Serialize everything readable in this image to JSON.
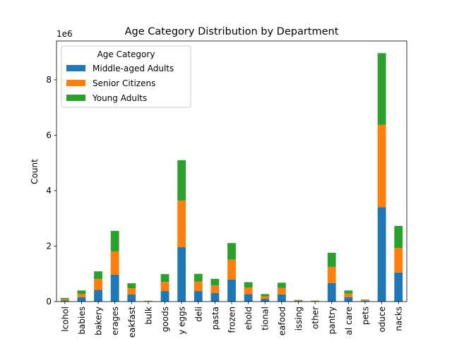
{
  "chart_data": {
    "type": "bar",
    "stacked": true,
    "title": "Age Category Distribution by Department",
    "xlabel": "",
    "ylabel": "Count",
    "offset_text": "1e6",
    "ylim": [
      0,
      9400000
    ],
    "yticks": [
      0,
      2,
      4,
      6,
      8
    ],
    "ytick_scale": 1000000,
    "grid": false,
    "legend": {
      "title": "Age Category",
      "placement": "top-left"
    },
    "categories": [
      "alcohol",
      "babies",
      "bakery",
      "beverages",
      "breakfast",
      "bulk",
      "canned goods",
      "dairy eggs",
      "deli",
      "pasta",
      "frozen",
      "household",
      "international",
      "meat seafood",
      "missing",
      "other",
      "pantry",
      "personal care",
      "pets",
      "produce",
      "snacks"
    ],
    "tick_labels": [
      "lcohol",
      "babies",
      "bakery",
      "erages",
      "eakfast",
      "bulk",
      "goods",
      "y eggs",
      "deli",
      "pasta",
      "frozen",
      "ehold",
      "tional",
      "eafood",
      "issing",
      "other",
      "pantry",
      "al care",
      "pets",
      "oduce",
      "nacks"
    ],
    "series": [
      {
        "name": "Middle-aged Adults",
        "color": "#1f77b4",
        "values": [
          45000,
          160000,
          420000,
          970000,
          260000,
          10000,
          380000,
          1960000,
          380000,
          310000,
          790000,
          270000,
          100000,
          260000,
          25000,
          13000,
          670000,
          155000,
          30000,
          3400000,
          1050000
        ]
      },
      {
        "name": "Senior Citizens",
        "color": "#ff7f0e",
        "values": [
          45000,
          120000,
          390000,
          840000,
          220000,
          10000,
          330000,
          1680000,
          340000,
          270000,
          720000,
          240000,
          90000,
          230000,
          20000,
          12000,
          580000,
          135000,
          25000,
          2980000,
          880000
        ]
      },
      {
        "name": "Young Adults",
        "color": "#2ca02c",
        "values": [
          40000,
          120000,
          280000,
          740000,
          180000,
          10000,
          280000,
          1460000,
          280000,
          240000,
          600000,
          190000,
          80000,
          190000,
          15000,
          10000,
          510000,
          110000,
          20000,
          2580000,
          800000
        ]
      }
    ]
  }
}
